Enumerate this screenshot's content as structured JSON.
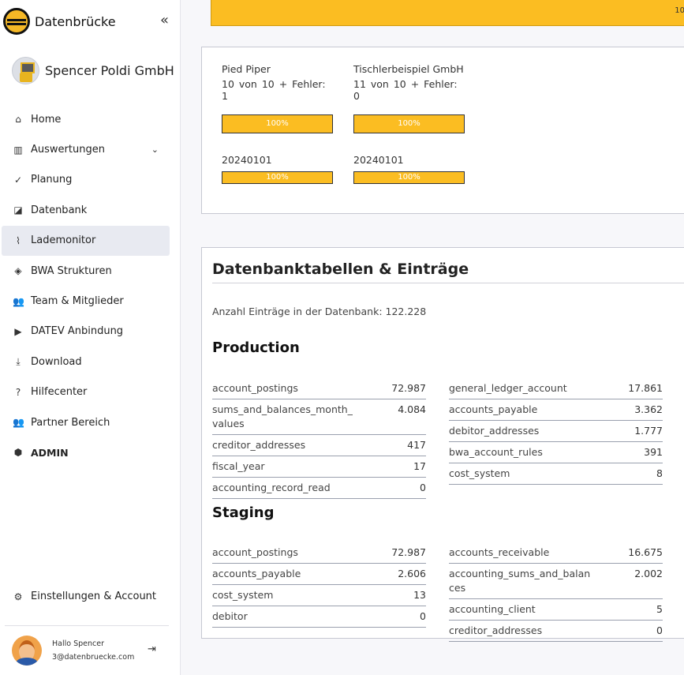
{
  "brand": {
    "name": "Datenbrücke",
    "collapse_icon": "«"
  },
  "company": {
    "name": "Spencer Poldi GmbH"
  },
  "nav": [
    {
      "label": "Home",
      "icon": "⌂"
    },
    {
      "label": "Auswertungen",
      "icon": "▥",
      "chevron": "⌄"
    },
    {
      "label": "Planung",
      "icon": "✓"
    },
    {
      "label": "Datenbank",
      "icon": "◪"
    },
    {
      "label": "Lademonitor",
      "icon": "⌇",
      "active": true
    },
    {
      "label": "BWA Strukturen",
      "icon": "◈"
    },
    {
      "label": "Team & Mitglieder",
      "icon": "👥"
    },
    {
      "label": "DATEV Anbindung",
      "icon": "▶"
    },
    {
      "label": "Download",
      "icon": "⤓"
    },
    {
      "label": "Hilfecenter",
      "icon": "?"
    },
    {
      "label": "Partner Bereich",
      "icon": "👥"
    },
    {
      "label": "ADMIN",
      "icon": "⬢",
      "bold": true
    }
  ],
  "settings": {
    "label": "Einstellungen & Account",
    "icon": "⚙"
  },
  "user": {
    "greeting": "Hallo Spencer",
    "email": "3@datenbruecke.com",
    "logout_icon": "⇥"
  },
  "topbar": {
    "label": "10",
    "progress_percent": 100
  },
  "jobs": [
    {
      "name": "Pied Piper",
      "stats": "10  von  10 +  Fehler:  1",
      "progress": "100%",
      "date": "20240101",
      "date_progress": "100%"
    },
    {
      "name": "Tischlerbeispiel GmbH",
      "stats": "11  von  10 +  Fehler:  0",
      "progress": "100%",
      "date": "20240101",
      "date_progress": "100%"
    }
  ],
  "db": {
    "title": "Datenbanktabellen & Einträge",
    "count_text": "Anzahl Einträge in der Datenbank: 122.228",
    "production": {
      "title": "Production",
      "left": [
        {
          "k": "account_postings",
          "v": "72.987"
        },
        {
          "k": "sums_and_balances_month_values",
          "v": "4.084"
        },
        {
          "k": "creditor_addresses",
          "v": "417"
        },
        {
          "k": "fiscal_year",
          "v": "17"
        },
        {
          "k": "accounting_record_read",
          "v": "0"
        }
      ],
      "right": [
        {
          "k": "general_ledger_account",
          "v": "17.861"
        },
        {
          "k": "accounts_payable",
          "v": "3.362"
        },
        {
          "k": "debitor_addresses",
          "v": "1.777"
        },
        {
          "k": "bwa_account_rules",
          "v": "391"
        },
        {
          "k": "cost_system",
          "v": "8"
        }
      ]
    },
    "staging": {
      "title": "Staging",
      "left": [
        {
          "k": "account_postings",
          "v": "72.987"
        },
        {
          "k": "accounts_payable",
          "v": "2.606"
        },
        {
          "k": "cost_system",
          "v": "13"
        },
        {
          "k": "debitor",
          "v": "0"
        }
      ],
      "right": [
        {
          "k": "accounts_receivable",
          "v": "16.675"
        },
        {
          "k": "accounting_sums_and_balances",
          "v": "2.002"
        },
        {
          "k": "accounting_client",
          "v": "5"
        },
        {
          "k": "creditor_addresses",
          "v": "0"
        }
      ]
    }
  }
}
